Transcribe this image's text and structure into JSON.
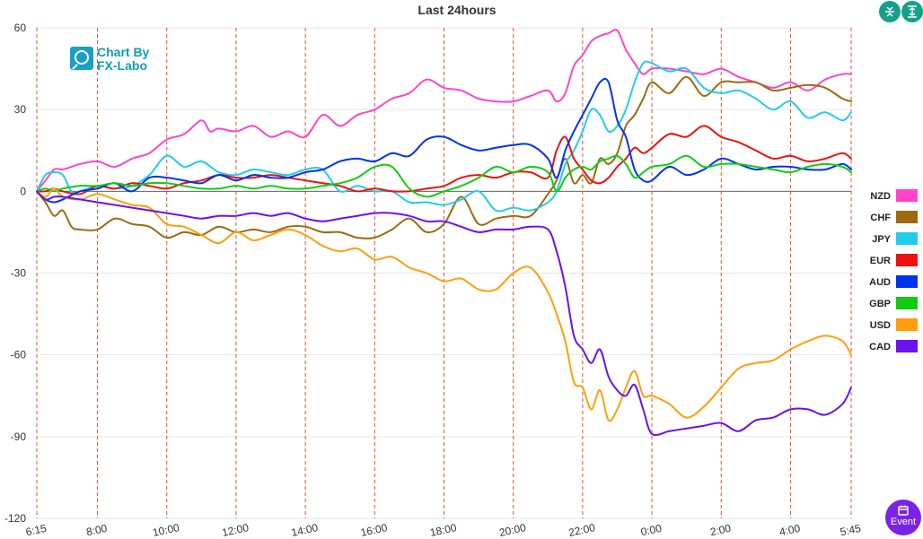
{
  "controls": {
    "split_icon": "split-vertical-icon",
    "expand_icon": "expand-vertical-icon",
    "event_label": "Event",
    "event_icon": "calendar-icon"
  },
  "watermark": {
    "line1": "Chart By",
    "line2": "FX-Labo"
  },
  "colors": {
    "NZD": "#ff44cc",
    "CHF": "#9c6a10",
    "JPY": "#22ccee",
    "EUR": "#ee1111",
    "AUD": "#0033ee",
    "GBP": "#11cc11",
    "USD": "#ff9e0b",
    "CAD": "#6a11ee",
    "grid": "#e6e6e6",
    "vline": "#d9542b"
  },
  "chart_data": {
    "type": "line",
    "title": "Last 24hours",
    "ylim": [
      -120,
      60
    ],
    "yticks": [
      60,
      30,
      0,
      -30,
      -60,
      -90,
      -120
    ],
    "xlim": [
      6.25,
      29.75
    ],
    "xtick_labels": [
      "6:15",
      "8:00",
      "10:00",
      "12:00",
      "14:00",
      "16:00",
      "18:00",
      "20:00",
      "22:00",
      "0:00",
      "2:00",
      "4:00",
      "5:45"
    ],
    "xticks": [
      6.25,
      8,
      10,
      12,
      14,
      16,
      18,
      20,
      22,
      24,
      26,
      28,
      29.75
    ],
    "grid": true,
    "legend_position": "right",
    "series": [
      {
        "name": "NZD",
        "x": [
          6.25,
          6.5,
          6.75,
          7,
          7.25,
          7.5,
          8,
          8.5,
          9,
          9.5,
          10,
          10.5,
          11,
          11.25,
          11.5,
          12,
          12.5,
          13,
          13.5,
          14,
          14.5,
          15,
          15.5,
          16,
          16.5,
          17,
          17.5,
          18,
          18.5,
          19,
          19.5,
          20,
          20.5,
          21,
          21.25,
          21.5,
          21.75,
          22,
          22.25,
          22.5,
          22.75,
          23,
          23.25,
          23.5,
          23.75,
          24,
          24.5,
          25,
          25.5,
          26,
          26.5,
          27,
          27.5,
          28,
          28.5,
          29,
          29.5,
          29.75
        ],
        "values": [
          0,
          4,
          8,
          8,
          9,
          10,
          11,
          9,
          12,
          14,
          19,
          21,
          26,
          22,
          23,
          22,
          24,
          20,
          22,
          20,
          28,
          24,
          28,
          30,
          34,
          36,
          41,
          38,
          37,
          34,
          33,
          33,
          35,
          37,
          33,
          36,
          46,
          50,
          55,
          57,
          58,
          59,
          52,
          47,
          43,
          45,
          45,
          44,
          43,
          45,
          42,
          40,
          38,
          40,
          37,
          41,
          43,
          43
        ]
      },
      {
        "name": "CHF",
        "x": [
          6.25,
          6.5,
          6.75,
          7,
          7.25,
          7.5,
          8,
          8.5,
          9,
          9.5,
          10,
          10.5,
          11,
          11.5,
          12,
          12.5,
          13,
          13.5,
          14,
          14.5,
          15,
          15.5,
          16,
          16.5,
          17,
          17.5,
          18,
          18.5,
          19,
          19.5,
          20,
          20.5,
          21,
          21.25,
          21.5,
          21.75,
          22,
          22.25,
          22.5,
          22.75,
          23,
          23.25,
          23.5,
          23.75,
          24,
          24.5,
          25,
          25.5,
          26,
          26.5,
          27,
          27.5,
          28,
          28.5,
          29,
          29.5,
          29.75
        ],
        "values": [
          0,
          -4,
          -9,
          -7,
          -13,
          -14,
          -14,
          -10,
          -12,
          -13,
          -17,
          -15,
          -16,
          -13,
          -15,
          -14,
          -15,
          -13,
          -13,
          -15,
          -15,
          -17,
          -17,
          -14,
          -10,
          -15,
          -12,
          -2,
          -12,
          -10,
          -9,
          -9,
          -1,
          4,
          12,
          3,
          6,
          3,
          12,
          10,
          14,
          24,
          28,
          34,
          40,
          36,
          42,
          35,
          40,
          40,
          40,
          37,
          38,
          39,
          38,
          34,
          33
        ]
      },
      {
        "name": "JPY",
        "x": [
          6.25,
          6.5,
          6.75,
          7,
          7.25,
          7.5,
          8,
          8.5,
          9,
          9.5,
          10,
          10.5,
          11,
          11.5,
          12,
          12.5,
          13,
          13.5,
          14,
          14.5,
          15,
          15.5,
          16,
          16.5,
          17,
          17.5,
          18,
          18.5,
          19,
          19.5,
          20,
          20.5,
          21,
          21.25,
          21.5,
          21.75,
          22,
          22.25,
          22.5,
          22.75,
          23,
          23.25,
          23.5,
          23.75,
          24,
          24.5,
          25,
          25.5,
          26,
          26.5,
          27,
          27.5,
          28,
          28.5,
          29,
          29.5,
          29.75
        ],
        "values": [
          0,
          6,
          7,
          6,
          0,
          0,
          2,
          1,
          2,
          6,
          13,
          9,
          11,
          7,
          6,
          8,
          7,
          6,
          8,
          8,
          0,
          2,
          0,
          0,
          -4,
          -4,
          -5,
          -3,
          0,
          -7,
          -6,
          -7,
          -4,
          0,
          10,
          15,
          22,
          30,
          28,
          22,
          24,
          30,
          40,
          47,
          47,
          44,
          45,
          38,
          36,
          37,
          34,
          30,
          33,
          27,
          29,
          26,
          29
        ]
      },
      {
        "name": "EUR",
        "x": [
          6.25,
          6.5,
          6.75,
          7,
          7.5,
          8,
          8.5,
          9,
          9.5,
          10,
          10.5,
          11,
          11.5,
          12,
          12.5,
          13,
          13.5,
          14,
          14.5,
          15,
          15.5,
          16,
          16.5,
          17,
          17.5,
          18,
          18.5,
          19,
          19.5,
          20,
          20.5,
          21,
          21.25,
          21.5,
          21.75,
          22,
          22.25,
          22.5,
          22.75,
          23,
          23.25,
          23.5,
          23.75,
          24,
          24.5,
          25,
          25.5,
          26,
          26.5,
          27,
          27.5,
          28,
          28.5,
          29,
          29.5,
          29.75
        ],
        "values": [
          0,
          0,
          1,
          0,
          -1,
          2,
          1,
          3,
          2,
          1,
          3,
          4,
          6,
          5,
          5,
          6,
          5,
          4,
          3,
          2,
          0,
          1,
          0,
          0,
          1,
          2,
          5,
          6,
          5,
          7,
          7,
          5,
          15,
          20,
          12,
          8,
          4,
          3,
          5,
          9,
          12,
          16,
          14,
          16,
          21,
          20,
          24,
          20,
          18,
          15,
          12,
          13,
          11,
          12,
          14,
          12
        ]
      },
      {
        "name": "AUD",
        "x": [
          6.25,
          6.5,
          6.75,
          7,
          7.5,
          8,
          8.5,
          9,
          9.5,
          10,
          10.5,
          11,
          11.5,
          12,
          12.5,
          13,
          13.5,
          14,
          14.5,
          15,
          15.5,
          16,
          16.5,
          17,
          17.5,
          18,
          18.5,
          19,
          19.5,
          20,
          20.5,
          21,
          21.25,
          21.5,
          21.75,
          22,
          22.25,
          22.5,
          22.75,
          23,
          23.25,
          23.5,
          23.75,
          24,
          24.5,
          25,
          25.5,
          26,
          26.5,
          27,
          27.5,
          28,
          28.5,
          29,
          29.5,
          29.75
        ],
        "values": [
          0,
          -3,
          -4,
          -3,
          0,
          1,
          3,
          0,
          5,
          5,
          4,
          3,
          6,
          4,
          6,
          5,
          5,
          7,
          8,
          11,
          12,
          11,
          14,
          13,
          19,
          20,
          17,
          15,
          16,
          17,
          17,
          12,
          5,
          15,
          22,
          28,
          34,
          40,
          40,
          26,
          20,
          8,
          4,
          4,
          9,
          6,
          8,
          12,
          10,
          8,
          9,
          9,
          8,
          8,
          10,
          8
        ]
      },
      {
        "name": "GBP",
        "x": [
          6.25,
          6.5,
          6.75,
          7,
          7.5,
          8,
          8.5,
          9,
          9.5,
          10,
          10.5,
          11,
          11.5,
          12,
          12.5,
          13,
          13.5,
          14,
          14.5,
          15,
          15.5,
          16,
          16.5,
          17,
          17.5,
          18,
          18.5,
          19,
          19.5,
          20,
          20.5,
          21,
          21.25,
          21.5,
          21.75,
          22,
          22.25,
          22.5,
          22.75,
          23,
          23.25,
          23.5,
          23.75,
          24,
          24.5,
          25,
          25.5,
          26,
          26.5,
          27,
          27.5,
          28,
          28.5,
          29,
          29.5,
          29.75
        ],
        "values": [
          0,
          1,
          0,
          1,
          2,
          2,
          3,
          2,
          3,
          3,
          2,
          1,
          1,
          2,
          1,
          2,
          1,
          1,
          2,
          3,
          5,
          9,
          9,
          1,
          -2,
          0,
          2,
          5,
          9,
          7,
          9,
          7,
          0,
          5,
          8,
          9,
          8,
          11,
          12,
          13,
          10,
          5,
          7,
          9,
          10,
          13,
          9,
          10,
          10,
          9,
          8,
          7,
          9,
          10,
          9,
          7
        ]
      },
      {
        "name": "USD",
        "x": [
          6.25,
          6.5,
          6.75,
          7,
          7.5,
          8,
          8.5,
          9,
          9.5,
          10,
          10.5,
          11,
          11.5,
          12,
          12.5,
          13,
          13.5,
          14,
          14.5,
          15,
          15.5,
          16,
          16.5,
          17,
          17.5,
          18,
          18.5,
          19,
          19.5,
          20,
          20.5,
          21,
          21.25,
          21.5,
          21.75,
          22,
          22.25,
          22.5,
          22.75,
          23,
          23.25,
          23.5,
          23.75,
          24,
          24.5,
          25,
          25.5,
          26,
          26.5,
          27,
          27.5,
          28,
          28.5,
          29,
          29.5,
          29.75
        ],
        "values": [
          0,
          -2,
          1,
          -2,
          -3,
          -1,
          -3,
          -5,
          -6,
          -12,
          -13,
          -16,
          -19,
          -15,
          -18,
          -16,
          -14,
          -16,
          -20,
          -22,
          -21,
          -25,
          -24,
          -28,
          -30,
          -33,
          -32,
          -36,
          -36,
          -30,
          -28,
          -37,
          -45,
          -55,
          -70,
          -72,
          -80,
          -73,
          -84,
          -80,
          -72,
          -66,
          -75,
          -75,
          -78,
          -83,
          -79,
          -72,
          -65,
          -63,
          -62,
          -58,
          -55,
          -53,
          -55,
          -60
        ]
      },
      {
        "name": "CAD",
        "x": [
          6.25,
          6.5,
          6.75,
          7,
          7.5,
          8,
          8.5,
          9,
          9.5,
          10,
          10.5,
          11,
          11.5,
          12,
          12.5,
          13,
          13.5,
          14,
          14.5,
          15,
          15.5,
          16,
          16.5,
          17,
          17.5,
          18,
          18.5,
          19,
          19.5,
          20,
          20.5,
          21,
          21.25,
          21.5,
          21.75,
          22,
          22.25,
          22.5,
          22.75,
          23,
          23.25,
          23.5,
          23.75,
          24,
          24.5,
          25,
          25.5,
          26,
          26.5,
          27,
          27.5,
          28,
          28.5,
          29,
          29.5,
          29.75
        ],
        "values": [
          0,
          -3,
          -2,
          -2,
          -3,
          -4,
          -5,
          -6,
          -7,
          -8,
          -9,
          -10,
          -9,
          -9,
          -8,
          -9,
          -8,
          -10,
          -11,
          -10,
          -9,
          -8,
          -8,
          -9,
          -11,
          -11,
          -13,
          -15,
          -14,
          -14,
          -13,
          -14,
          -22,
          -35,
          -53,
          -58,
          -63,
          -58,
          -68,
          -73,
          -75,
          -71,
          -80,
          -89,
          -88,
          -87,
          -86,
          -85,
          -88,
          -84,
          -83,
          -80,
          -80,
          -82,
          -78,
          -72
        ]
      }
    ]
  }
}
